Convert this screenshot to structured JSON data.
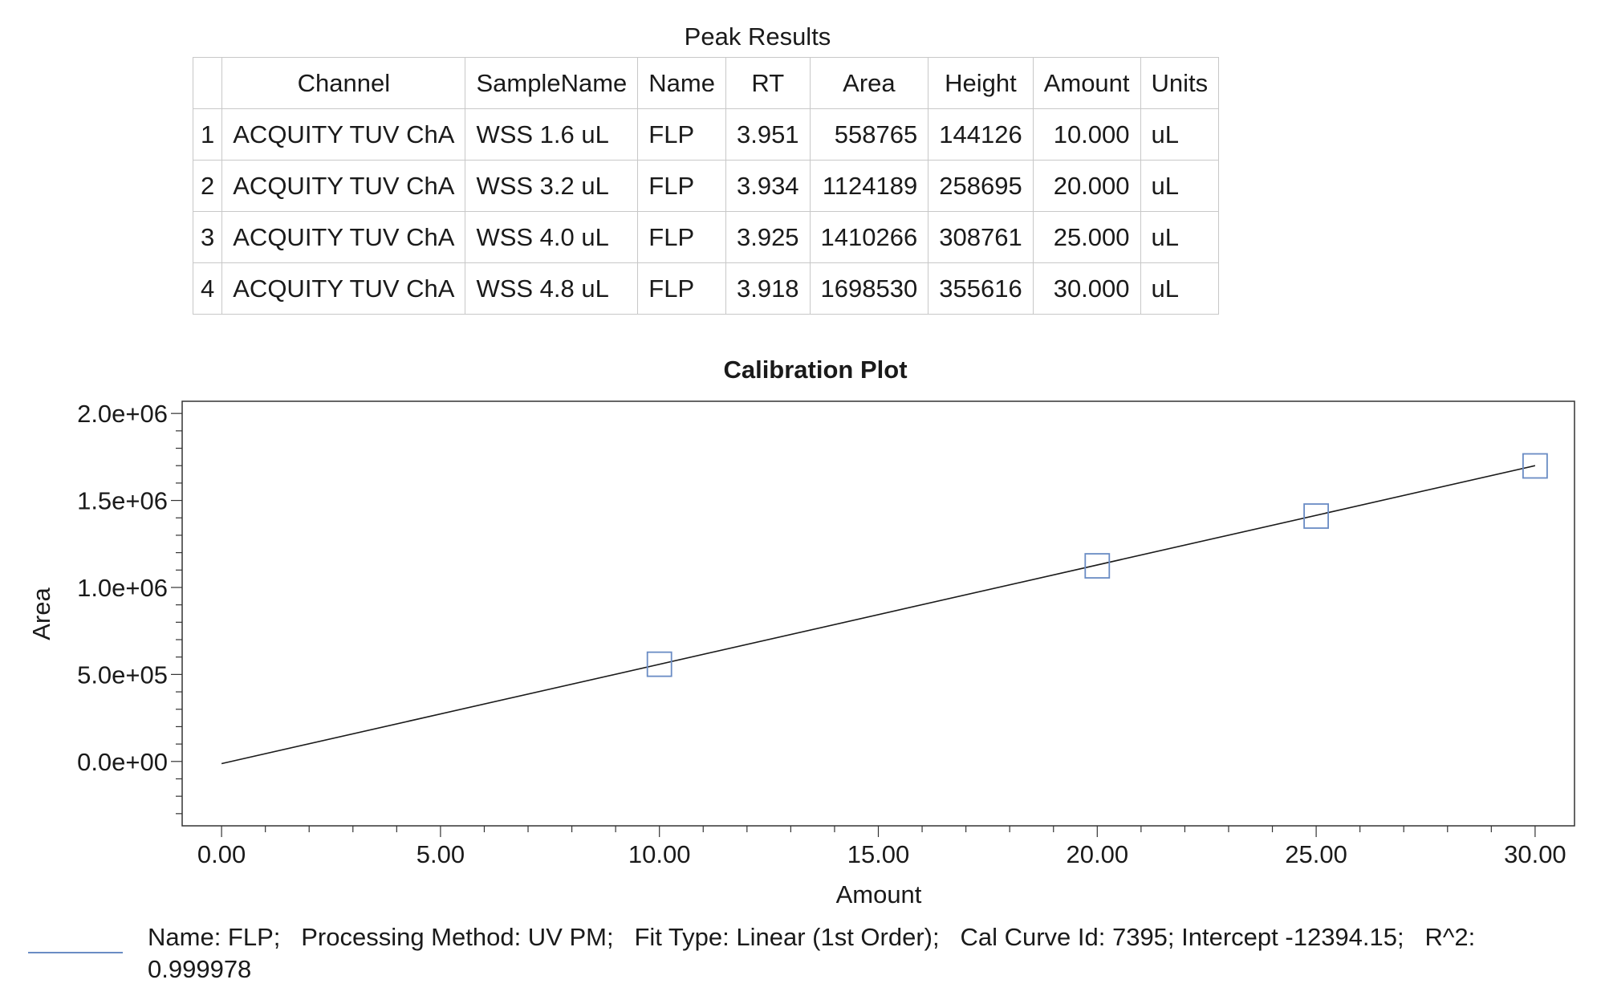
{
  "table": {
    "title": "Peak Results",
    "headers": [
      "",
      "Channel",
      "SampleName",
      "Name",
      "RT",
      "Area",
      "Height",
      "Amount",
      "Units"
    ],
    "rows": [
      [
        "1",
        "ACQUITY TUV ChA",
        "WSS 1.6 uL",
        "FLP",
        "3.951",
        "558765",
        "144126",
        "10.000",
        "uL"
      ],
      [
        "2",
        "ACQUITY TUV ChA",
        "WSS 3.2 uL",
        "FLP",
        "3.934",
        "1124189",
        "258695",
        "20.000",
        "uL"
      ],
      [
        "3",
        "ACQUITY TUV ChA",
        "WSS 4.0 uL",
        "FLP",
        "3.925",
        "1410266",
        "308761",
        "25.000",
        "uL"
      ],
      [
        "4",
        "ACQUITY TUV ChA",
        "WSS 4.8 uL",
        "FLP",
        "3.918",
        "1698530",
        "355616",
        "30.000",
        "uL"
      ]
    ]
  },
  "chart_data": {
    "type": "scatter",
    "title": "Calibration Plot",
    "xlabel": "Amount",
    "ylabel": "Area",
    "xlim": [
      -0.9,
      30.9
    ],
    "ylim": [
      -370000,
      2070000
    ],
    "x_ticks": [
      "0.00",
      "5.00",
      "10.00",
      "15.00",
      "20.00",
      "25.00",
      "30.00"
    ],
    "x_tick_values": [
      0,
      5,
      10,
      15,
      20,
      25,
      30
    ],
    "y_ticks": [
      "0.0e+00",
      "5.0e+05",
      "1.0e+06",
      "1.5e+06",
      "2.0e+06"
    ],
    "y_tick_values": [
      0,
      500000,
      1000000,
      1500000,
      2000000
    ],
    "points": {
      "x": [
        10,
        20,
        25,
        30
      ],
      "y": [
        558765,
        1124189,
        1410266,
        1698530
      ]
    },
    "fit_line": {
      "x": [
        0,
        30
      ],
      "y": [
        -12394.15,
        1700000
      ]
    },
    "marker_color": "#6a8cc4",
    "line_color": "#1a1a1a",
    "grid": false,
    "legend": "bottom-left"
  },
  "legend": {
    "text": "Name: FLP;   Processing Method: UV PM;   Fit Type: Linear (1st Order);   Cal Curve Id: 7395; Intercept -12394.15;   R^2:\n0.999978",
    "color": "#6a8cc4"
  }
}
